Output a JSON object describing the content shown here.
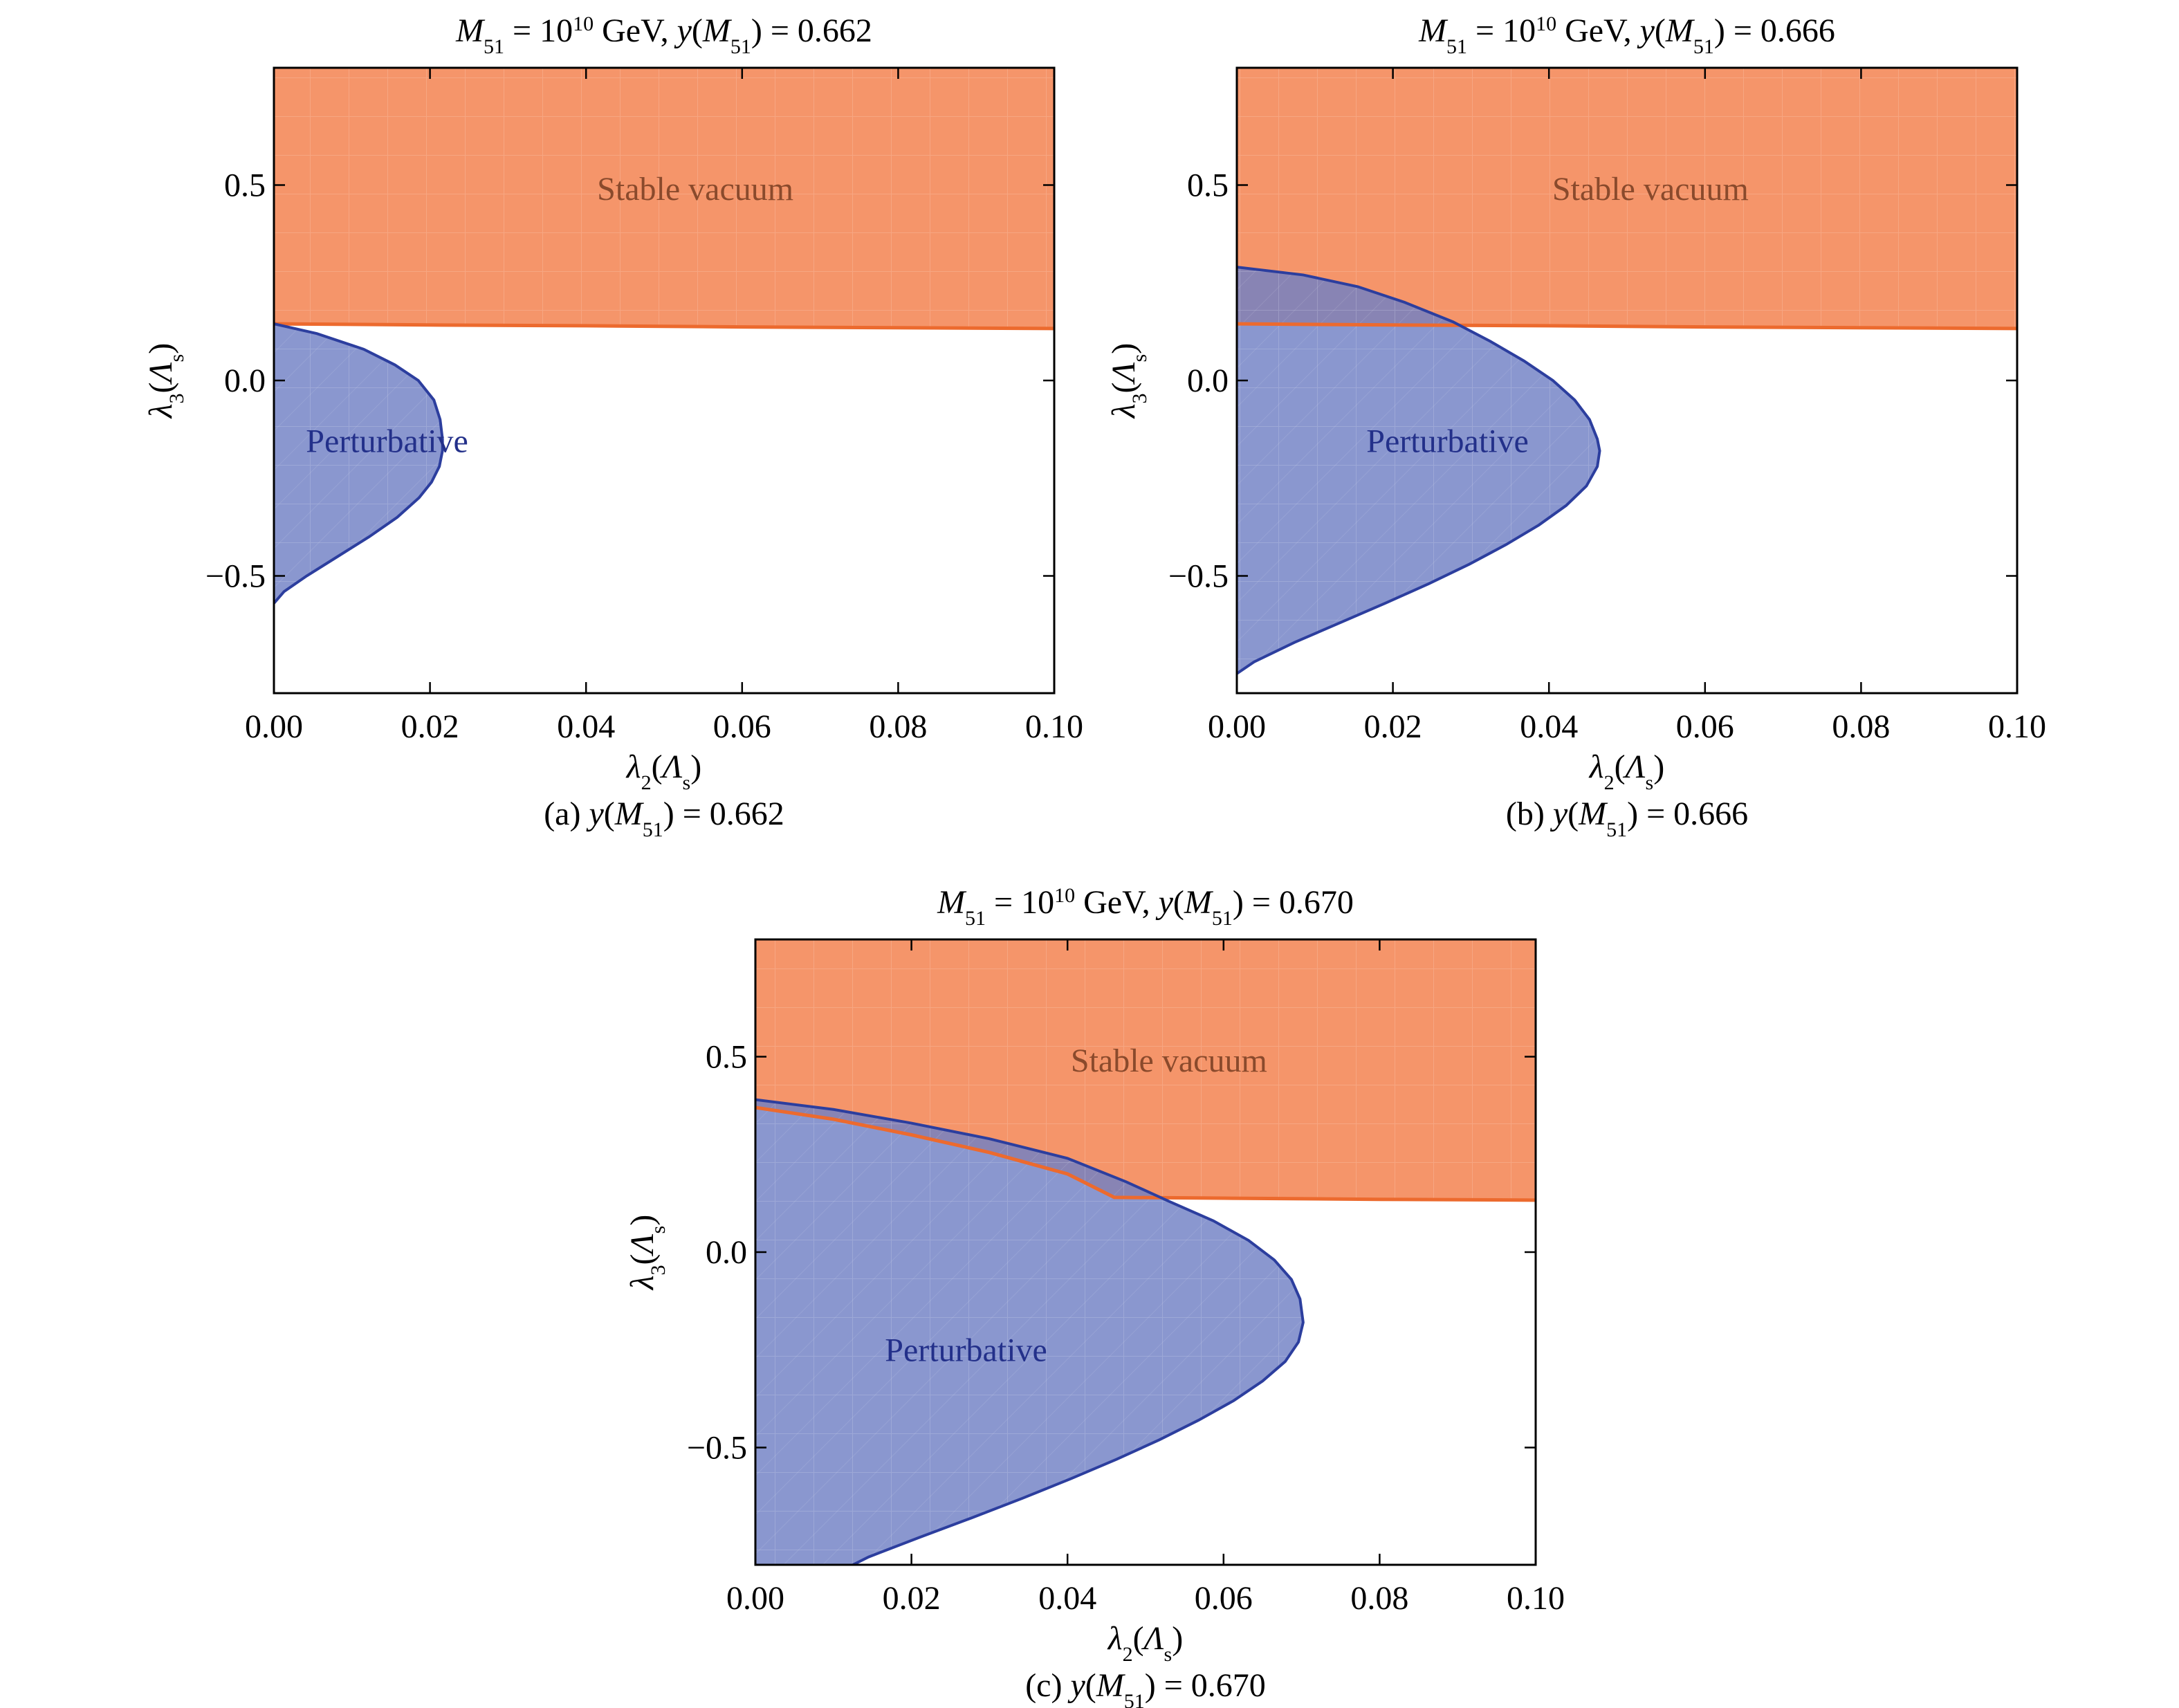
{
  "chart_data": [
    {
      "type": "area",
      "panel": "a",
      "title": {
        "pre": "M",
        "sub1": "51",
        "mid": " = 10",
        "sup": "10",
        "mid2": " GeV, y(M",
        "sub2": "51",
        "post": ") = 0.662"
      },
      "caption": {
        "pre": "(a) y(M",
        "sub": "51",
        "post": ") = 0.662"
      },
      "xlabel": {
        "main": "λ",
        "sub": "2",
        "open": "(Λ",
        "sub2": "s",
        "close": ")"
      },
      "ylabel": {
        "main": "λ",
        "sub": "3",
        "open": "(Λ",
        "sub2": "s",
        "close": ")"
      },
      "xlim": [
        0,
        0.1
      ],
      "ylim": [
        -0.8,
        0.8
      ],
      "xticks": [
        "0.00",
        "0.02",
        "0.04",
        "0.06",
        "0.08",
        "0.10"
      ],
      "yticks": [
        "−0.5",
        "0.0",
        "0.5"
      ],
      "regions": [
        {
          "name": "Stable vacuum",
          "color": "#f5956a",
          "edge": "#ec6a2e",
          "boundary_x": [
            0,
            0.02,
            0.04,
            0.06,
            0.08,
            0.1
          ],
          "boundary_y": [
            0.145,
            0.142,
            0.14,
            0.137,
            0.135,
            0.133
          ],
          "label_pos": [
            0.054,
            0.49
          ]
        },
        {
          "name": "Perturbative",
          "color": "#7080c4",
          "edge": "#2c3e9e",
          "contour_y": [
            0.145,
            0.12,
            0.08,
            0.04,
            0,
            -0.05,
            -0.1,
            -0.15,
            -0.18,
            -0.22,
            -0.26,
            -0.3,
            -0.35,
            -0.4,
            -0.45,
            -0.5,
            -0.54,
            -0.57
          ],
          "contour_x": [
            0,
            0.0055,
            0.0115,
            0.0155,
            0.0185,
            0.0205,
            0.0213,
            0.0216,
            0.0216,
            0.0212,
            0.0202,
            0.0186,
            0.0158,
            0.0122,
            0.0082,
            0.0042,
            0.0013,
            0
          ],
          "label_pos": [
            0.0145,
            -0.155
          ]
        }
      ]
    },
    {
      "type": "area",
      "panel": "b",
      "title": {
        "pre": "M",
        "sub1": "51",
        "mid": " = 10",
        "sup": "10",
        "mid2": " GeV, y(M",
        "sub2": "51",
        "post": ") = 0.666"
      },
      "caption": {
        "pre": "(b) y(M",
        "sub": "51",
        "post": ") = 0.666"
      },
      "xlabel": {
        "main": "λ",
        "sub": "2",
        "open": "(Λ",
        "sub2": "s",
        "close": ")"
      },
      "ylabel": {
        "main": "λ",
        "sub": "3",
        "open": "(Λ",
        "sub2": "s",
        "close": ")"
      },
      "xlim": [
        0,
        0.1
      ],
      "ylim": [
        -0.8,
        0.8
      ],
      "xticks": [
        "0.00",
        "0.02",
        "0.04",
        "0.06",
        "0.08",
        "0.10"
      ],
      "yticks": [
        "−0.5",
        "0.0",
        "0.5"
      ],
      "regions": [
        {
          "name": "Stable vacuum",
          "color": "#f5956a",
          "edge": "#ec6a2e",
          "boundary_x": [
            0,
            0.02,
            0.04,
            0.06,
            0.08,
            0.1
          ],
          "boundary_y": [
            0.145,
            0.142,
            0.14,
            0.137,
            0.135,
            0.133
          ],
          "label_pos": [
            0.053,
            0.49
          ]
        },
        {
          "name": "Perturbative",
          "color": "#7080c4",
          "edge": "#2c3e9e",
          "contour_y": [
            0.29,
            0.27,
            0.24,
            0.2,
            0.15,
            0.1,
            0.05,
            0,
            -0.05,
            -0.1,
            -0.15,
            -0.18,
            -0.22,
            -0.27,
            -0.32,
            -0.37,
            -0.42,
            -0.47,
            -0.52,
            -0.57,
            -0.62,
            -0.67,
            -0.72,
            -0.75
          ],
          "contour_x": [
            0,
            0.0085,
            0.0155,
            0.0215,
            0.0277,
            0.0325,
            0.0368,
            0.0405,
            0.0433,
            0.0452,
            0.0462,
            0.0465,
            0.0462,
            0.0448,
            0.0422,
            0.0387,
            0.0345,
            0.0298,
            0.0246,
            0.019,
            0.0132,
            0.0074,
            0.0022,
            0
          ],
          "label_pos": [
            0.027,
            -0.155
          ]
        }
      ]
    },
    {
      "type": "area",
      "panel": "c",
      "title": {
        "pre": "M",
        "sub1": "51",
        "mid": " = 10",
        "sup": "10",
        "mid2": " GeV, y(M",
        "sub2": "51",
        "post": ") = 0.670"
      },
      "caption": {
        "pre": "(c) y(M",
        "sub": "51",
        "post": ") = 0.670"
      },
      "xlabel": {
        "main": "λ",
        "sub": "2",
        "open": "(Λ",
        "sub2": "s",
        "close": ")"
      },
      "ylabel": {
        "main": "λ",
        "sub": "3",
        "open": "(Λ",
        "sub2": "s",
        "close": ")"
      },
      "xlim": [
        0,
        0.1
      ],
      "ylim": [
        -0.8,
        0.8
      ],
      "xticks": [
        "0.00",
        "0.02",
        "0.04",
        "0.06",
        "0.08",
        "0.10"
      ],
      "yticks": [
        "−0.5",
        "0.0",
        "0.5"
      ],
      "regions": [
        {
          "name": "Stable vacuum",
          "color": "#f5956a",
          "edge": "#ec6a2e",
          "boundary_x": [
            0,
            0.01,
            0.02,
            0.03,
            0.04,
            0.046,
            0.06,
            0.08,
            0.1
          ],
          "boundary_y": [
            0.37,
            0.34,
            0.3,
            0.255,
            0.2,
            0.14,
            0.138,
            0.135,
            0.133
          ],
          "label_pos": [
            0.053,
            0.49
          ]
        },
        {
          "name": "Perturbative",
          "color": "#7080c4",
          "edge": "#2c3e9e",
          "contour_y": [
            0.39,
            0.365,
            0.33,
            0.29,
            0.24,
            0.18,
            0.13,
            0.08,
            0.03,
            -0.02,
            -0.07,
            -0.12,
            -0.18,
            -0.23,
            -0.28,
            -0.33,
            -0.38,
            -0.43,
            -0.48,
            -0.53,
            -0.58,
            -0.63,
            -0.68,
            -0.73,
            -0.78,
            -0.8
          ],
          "contour_x": [
            0,
            0.01,
            0.02,
            0.03,
            0.04,
            0.0475,
            0.053,
            0.0587,
            0.0632,
            0.0665,
            0.0687,
            0.0698,
            0.0702,
            0.0696,
            0.0679,
            0.065,
            0.0613,
            0.0568,
            0.0518,
            0.0463,
            0.0404,
            0.0342,
            0.0277,
            0.021,
            0.0145,
            0.0125
          ],
          "label_pos": [
            0.027,
            -0.25
          ]
        }
      ]
    }
  ]
}
